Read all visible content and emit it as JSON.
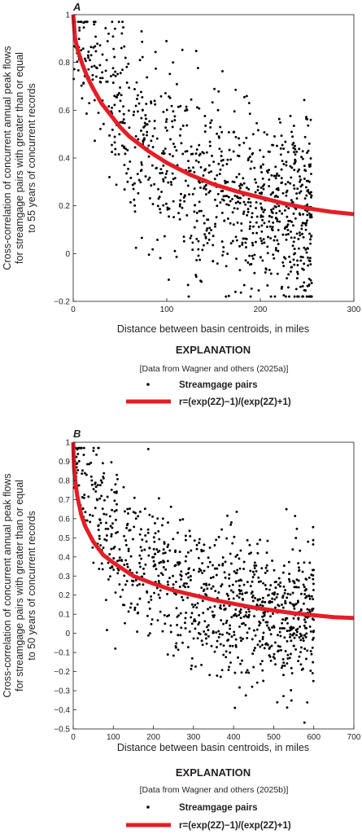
{
  "chart_data": [
    {
      "type": "scatter",
      "panel": "A",
      "ylabel": [
        "Cross-correlation of concurrent annual peak flows",
        "for streamgage pairs with greater than or equal",
        "to 55 years of concurrent records"
      ],
      "xlabel": "Distance between basin centroids, in miles",
      "xlim": [
        0,
        300
      ],
      "ylim": [
        -0.2,
        1
      ],
      "x_ticks": [
        0,
        100,
        200,
        300
      ],
      "y_ticks": [
        -0.2,
        0,
        0.2,
        0.4,
        0.6,
        0.8,
        1
      ],
      "x_tick_labels": [
        "0",
        "100",
        "200",
        "300"
      ],
      "y_tick_labels": [
        "−0.2",
        "0",
        "0.2",
        "0.4",
        "0.6",
        "0.8",
        "1"
      ],
      "grid": false,
      "scatter_model": {
        "n": 1000,
        "x_max": 255,
        "decay": 0.0095,
        "floor": 0.05,
        "spread": 0.2
      },
      "series": [
        {
          "name": "Streamgage pairs",
          "kind": "points",
          "color": "#000000"
        },
        {
          "name": "r=(exp(2Z)−1)/(exp(2Z)+1)",
          "kind": "curve",
          "color": "#e41e26",
          "x": [
            0,
            2,
            5,
            10,
            15,
            20,
            30,
            40,
            50,
            60,
            80,
            100,
            125,
            150,
            175,
            200,
            225,
            250,
            275,
            300
          ],
          "y": [
            1.0,
            0.9,
            0.85,
            0.79,
            0.74,
            0.7,
            0.63,
            0.58,
            0.53,
            0.49,
            0.43,
            0.38,
            0.33,
            0.29,
            0.26,
            0.235,
            0.21,
            0.19,
            0.175,
            0.165
          ]
        }
      ],
      "explanation": {
        "title": "EXPLANATION",
        "source": "[Data from Wagner and others (2025a)]",
        "items": [
          "Streamgage pairs",
          "r=(exp(2Z)−1)/(exp(2Z)+1)"
        ]
      }
    },
    {
      "type": "scatter",
      "panel": "B",
      "ylabel": [
        "Cross-correlation of concurrent annual peak flows",
        "for streamgage pairs with greater than or equal",
        "to 50 years of concurrent records"
      ],
      "xlabel": "Distance between basin centroids, in miles",
      "xlim": [
        0,
        700
      ],
      "ylim": [
        -0.5,
        1
      ],
      "x_ticks": [
        0,
        100,
        200,
        300,
        400,
        500,
        600,
        700
      ],
      "y_ticks": [
        -0.5,
        -0.4,
        -0.3,
        -0.2,
        -0.1,
        0,
        0.1,
        0.2,
        0.3,
        0.4,
        0.5,
        0.6,
        0.7,
        0.8,
        0.9,
        1
      ],
      "x_tick_labels": [
        "0",
        "100",
        "200",
        "300",
        "400",
        "500",
        "600",
        "700"
      ],
      "y_tick_labels": [
        "−0.5",
        "−0.4",
        "−0.3",
        "−0.2",
        "−0.1",
        "0",
        "0.1",
        "0.2",
        "0.3",
        "0.4",
        "0.5",
        "0.6",
        "0.7",
        "0.8",
        "0.9",
        "1"
      ],
      "grid": false,
      "scatter_model": {
        "n": 1000,
        "x_max": 600,
        "decay": 0.0065,
        "floor": 0.07,
        "spread": 0.19
      },
      "series": [
        {
          "name": "Streamgage pairs",
          "kind": "points",
          "color": "#000000"
        },
        {
          "name": "r=(exp(2Z)−1)/(exp(2Z)+1)",
          "kind": "curve",
          "color": "#e41e26",
          "x": [
            0,
            2,
            5,
            10,
            20,
            30,
            50,
            75,
            100,
            150,
            200,
            250,
            300,
            350,
            400,
            450,
            500,
            550,
            600,
            650,
            700
          ],
          "y": [
            1.0,
            0.87,
            0.8,
            0.72,
            0.62,
            0.56,
            0.48,
            0.41,
            0.37,
            0.3,
            0.26,
            0.225,
            0.2,
            0.175,
            0.155,
            0.135,
            0.12,
            0.105,
            0.095,
            0.085,
            0.08
          ]
        }
      ],
      "explanation": {
        "title": "EXPLANATION",
        "source": "[Data from Wagner and others (2025b)]",
        "items": [
          "Streamgage pairs",
          "r=(exp(2Z)−1)/(exp(2Z)+1)"
        ]
      }
    }
  ]
}
